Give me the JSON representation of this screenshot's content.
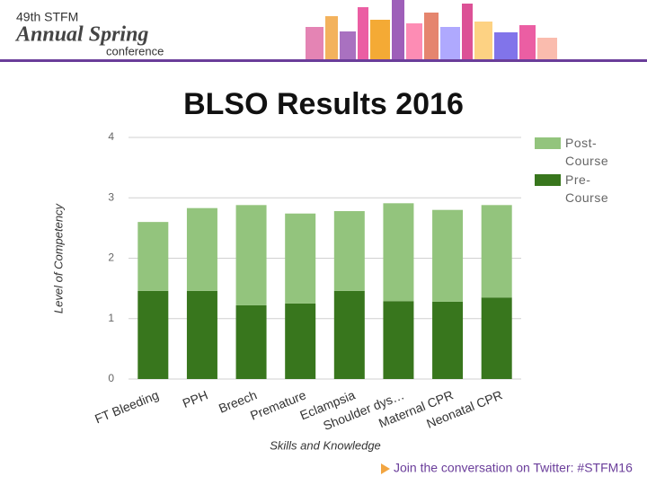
{
  "header": {
    "edition": "49th STFM",
    "event": "Annual Spring",
    "subtitle": "conference"
  },
  "footer": "Join the conversation on Twitter: #STFM16",
  "chart_data": {
    "type": "stacked-bar",
    "title": "BLSO Results 2016",
    "x_label": "Skills and Knowledge",
    "y_label": "Level of Competency",
    "categories": [
      "FT Bleeding",
      "PPH",
      "Breech",
      "Premature",
      "Eclampsia",
      "Shoulder dys…",
      "Maternal CPR",
      "Neonatal CPR"
    ],
    "series": [
      {
        "name": "Pre-Course",
        "color": "#38761d",
        "values": [
          1.46,
          1.46,
          1.22,
          1.25,
          1.46,
          1.29,
          1.28,
          1.35
        ]
      },
      {
        "name": "Post-Course",
        "color": "#93c47d",
        "values": [
          1.14,
          1.37,
          1.66,
          1.49,
          1.32,
          1.62,
          1.52,
          1.53
        ]
      }
    ],
    "ylim": [
      0,
      4
    ],
    "yticks": [
      0,
      1,
      2,
      3,
      4
    ],
    "grid": true,
    "legend": "right"
  }
}
